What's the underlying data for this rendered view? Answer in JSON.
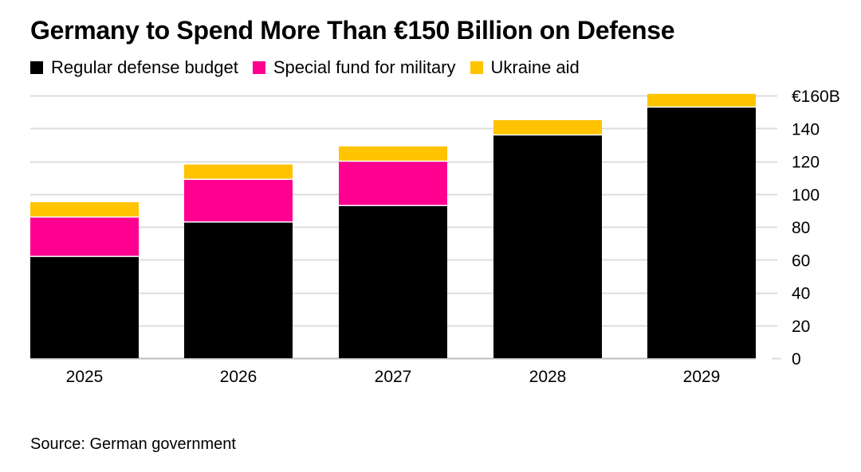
{
  "title": "Germany to Spend More Than €150 Billion on Defense",
  "source": "Source: German government",
  "colors": {
    "regular": "#000000",
    "special": "#ff0090",
    "ukraine": "#ffc300",
    "grid": "#dcdcdc",
    "text": "#000000"
  },
  "chart_data": {
    "type": "bar",
    "stacked": true,
    "categories": [
      "2025",
      "2026",
      "2027",
      "2028",
      "2029"
    ],
    "series": [
      {
        "name": "Regular defense budget",
        "color": "#000000",
        "values": [
          62,
          83,
          93,
          136,
          153
        ]
      },
      {
        "name": "Special fund for military",
        "color": "#ff0090",
        "values": [
          24,
          26,
          27,
          0,
          0
        ]
      },
      {
        "name": "Ukraine aid",
        "color": "#ffc300",
        "values": [
          9,
          9,
          9,
          9,
          8
        ]
      }
    ],
    "yticks": [
      {
        "value": 0,
        "label": "0"
      },
      {
        "value": 20,
        "label": "20"
      },
      {
        "value": 40,
        "label": "40"
      },
      {
        "value": 60,
        "label": "60"
      },
      {
        "value": 80,
        "label": "80"
      },
      {
        "value": 100,
        "label": "100"
      },
      {
        "value": 120,
        "label": "120"
      },
      {
        "value": 140,
        "label": "140"
      },
      {
        "value": 160,
        "label": "€160B"
      }
    ],
    "ylim": [
      0,
      160
    ],
    "grid": true,
    "legend_position": "top-left",
    "y_axis_position": "right"
  }
}
